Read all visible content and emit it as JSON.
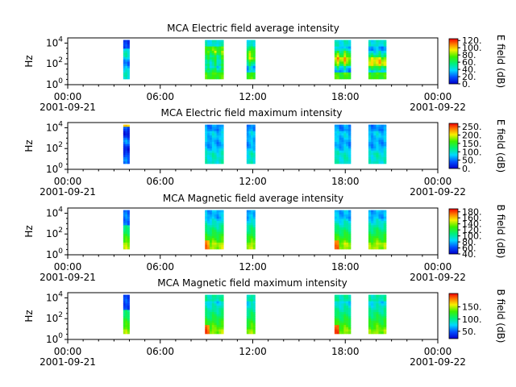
{
  "chart_data": [
    {
      "type": "heatmap",
      "title": "MCA  Electric field average intensity",
      "ylabel": "Hz",
      "yscale": "log",
      "ylim_exponents": [
        0,
        4.5
      ],
      "xlim": [
        "2001-09-21 00:00",
        "2001-09-22 00:00"
      ],
      "x_ticks": [
        {
          "t": 0,
          "label": "00:00",
          "date": "2001-09-21"
        },
        {
          "t": 6,
          "label": "06:00",
          "date": ""
        },
        {
          "t": 12,
          "label": "12:00",
          "date": ""
        },
        {
          "t": 18,
          "label": "18:00",
          "date": ""
        },
        {
          "t": 24,
          "label": "00:00",
          "date": "2001-09-22"
        }
      ],
      "colorbar": {
        "label": "E field (dB)",
        "min": 0,
        "max": 125,
        "ticks": [
          "0.",
          "20.",
          "40.",
          "60.",
          "80.",
          "100.",
          "120."
        ],
        "values": [
          0,
          20,
          40,
          60,
          80,
          100,
          120
        ]
      },
      "data_intervals_hours": [
        [
          3.6,
          4.0
        ],
        [
          8.9,
          10.1
        ],
        [
          11.6,
          12.15
        ],
        [
          17.3,
          18.35
        ],
        [
          19.5,
          20.65
        ]
      ],
      "profile": "avgE"
    },
    {
      "type": "heatmap",
      "title": "MCA  Electric field maximum intensity",
      "ylabel": "Hz",
      "yscale": "log",
      "ylim_exponents": [
        0,
        4.5
      ],
      "xlim": [
        "2001-09-21 00:00",
        "2001-09-22 00:00"
      ],
      "x_ticks": [
        {
          "t": 0,
          "label": "00:00",
          "date": "2001-09-21"
        },
        {
          "t": 6,
          "label": "06:00",
          "date": ""
        },
        {
          "t": 12,
          "label": "12:00",
          "date": ""
        },
        {
          "t": 18,
          "label": "18:00",
          "date": ""
        },
        {
          "t": 24,
          "label": "00:00",
          "date": "2001-09-22"
        }
      ],
      "colorbar": {
        "label": "E field (dB)",
        "min": 0,
        "max": 270,
        "ticks": [
          "0.",
          "50.",
          "100.",
          "150.",
          "200.",
          "250."
        ],
        "values": [
          0,
          50,
          100,
          150,
          200,
          250
        ]
      },
      "data_intervals_hours": [
        [
          3.6,
          4.0
        ],
        [
          8.9,
          10.1
        ],
        [
          11.6,
          12.15
        ],
        [
          17.3,
          18.35
        ],
        [
          19.5,
          20.65
        ]
      ],
      "profile": "maxE"
    },
    {
      "type": "heatmap",
      "title": "MCA  Magnetic field average intensity",
      "ylabel": "Hz",
      "yscale": "log",
      "ylim_exponents": [
        0,
        4.5
      ],
      "xlim": [
        "2001-09-21 00:00",
        "2001-09-22 00:00"
      ],
      "x_ticks": [
        {
          "t": 0,
          "label": "00:00",
          "date": "2001-09-21"
        },
        {
          "t": 6,
          "label": "06:00",
          "date": ""
        },
        {
          "t": 12,
          "label": "12:00",
          "date": ""
        },
        {
          "t": 18,
          "label": "18:00",
          "date": ""
        },
        {
          "t": 24,
          "label": "00:00",
          "date": "2001-09-22"
        }
      ],
      "colorbar": {
        "label": "B field (dB)",
        "min": 40,
        "max": 190,
        "ticks": [
          "40.",
          "60.",
          "80.",
          "100.",
          "120.",
          "140.",
          "160.",
          "180."
        ],
        "values": [
          40,
          60,
          80,
          100,
          120,
          140,
          160,
          180
        ]
      },
      "data_intervals_hours": [
        [
          3.6,
          4.0
        ],
        [
          8.9,
          10.1
        ],
        [
          11.6,
          12.15
        ],
        [
          17.3,
          18.35
        ],
        [
          19.5,
          20.65
        ]
      ],
      "profile": "avgB"
    },
    {
      "type": "heatmap",
      "title": "MCA  Magnetic field maximum intensity",
      "ylabel": "Hz",
      "yscale": "log",
      "ylim_exponents": [
        0,
        4.5
      ],
      "xlim": [
        "2001-09-21 00:00",
        "2001-09-22 00:00"
      ],
      "x_ticks": [
        {
          "t": 0,
          "label": "00:00",
          "date": "2001-09-21"
        },
        {
          "t": 6,
          "label": "06:00",
          "date": ""
        },
        {
          "t": 12,
          "label": "12:00",
          "date": ""
        },
        {
          "t": 18,
          "label": "18:00",
          "date": ""
        },
        {
          "t": 24,
          "label": "00:00",
          "date": "2001-09-22"
        }
      ],
      "colorbar": {
        "label": "B field (dB)",
        "min": 20,
        "max": 205,
        "ticks": [
          "50.",
          "100.",
          "150."
        ],
        "values": [
          50,
          100,
          150
        ]
      },
      "data_intervals_hours": [
        [
          3.6,
          4.0
        ],
        [
          8.9,
          10.1
        ],
        [
          11.6,
          12.15
        ],
        [
          17.3,
          18.35
        ],
        [
          19.5,
          20.65
        ]
      ],
      "profile": "maxB"
    }
  ],
  "y_tick_exponents": [
    0,
    2,
    4
  ],
  "colormap": "rainbow (blue-cyan-green-yellow-red)"
}
